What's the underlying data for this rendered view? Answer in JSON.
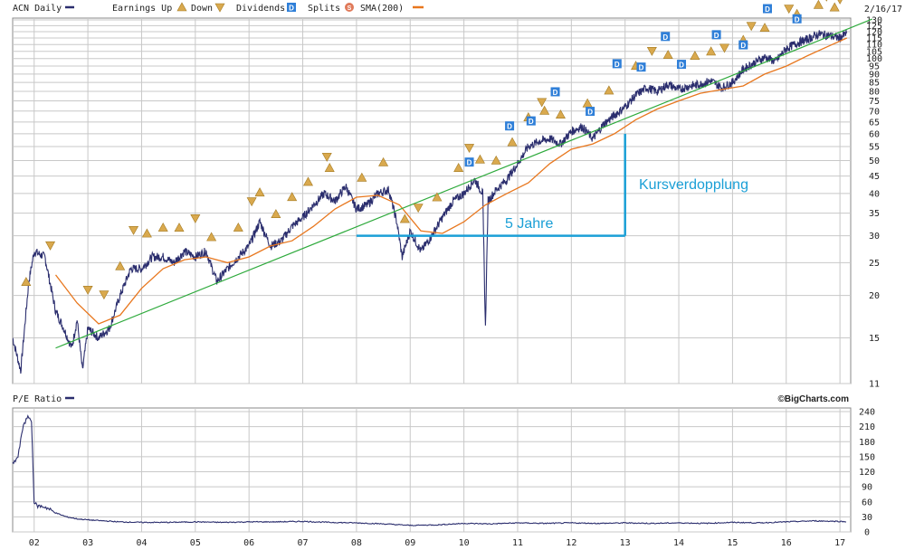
{
  "header": {
    "symbol_label": "ACN Daily",
    "earnings_label": "Earnings Up",
    "down_label": "Down",
    "dividends_label": "Dividends",
    "splits_label": "Splits",
    "sma_label": "SMA(200)",
    "date": "2/16/17"
  },
  "credit": "©BigCharts.com",
  "pe_panel": {
    "label": "P/E Ratio"
  },
  "colors": {
    "price": "#2b2e6e",
    "sma": "#e8771e",
    "trend": "#2eaa3c",
    "annotation": "#1a9fd6",
    "earnings": "#d9a94e",
    "dividend": "#2f7fd8",
    "grid": "#c8c8c8"
  },
  "annotations": {
    "doubling_label": "Kursverdopplung",
    "years_label": "5 Jahre"
  },
  "chart_data": [
    {
      "type": "line",
      "title": "ACN Daily",
      "scale": "log",
      "ylim": [
        11,
        130
      ],
      "y_ticks": [
        11,
        15,
        20,
        25,
        30,
        35,
        40,
        45,
        50,
        55,
        60,
        65,
        70,
        75,
        80,
        85,
        90,
        95,
        100,
        105,
        110,
        115,
        120,
        125,
        130
      ],
      "x_ticks": [
        "02",
        "03",
        "04",
        "05",
        "06",
        "07",
        "08",
        "09",
        "10",
        "11",
        "12",
        "13",
        "14",
        "15",
        "16",
        "17"
      ],
      "legend": [
        "ACN Daily",
        "Earnings Up",
        "Down",
        "Dividends",
        "Splits",
        "SMA(200)"
      ],
      "grid": true,
      "series": [
        {
          "name": "ACN Daily",
          "x": [
            2001.6,
            2001.75,
            2001.9,
            2002.0,
            2002.2,
            2002.4,
            2002.55,
            2002.7,
            2002.8,
            2002.9,
            2003.0,
            2003.2,
            2003.4,
            2003.6,
            2003.8,
            2004.0,
            2004.2,
            2004.4,
            2004.6,
            2004.8,
            2005.0,
            2005.2,
            2005.4,
            2005.6,
            2005.8,
            2006.0,
            2006.2,
            2006.4,
            2006.6,
            2006.8,
            2007.0,
            2007.2,
            2007.4,
            2007.6,
            2007.8,
            2008.0,
            2008.2,
            2008.4,
            2008.6,
            2008.75,
            2008.85,
            2009.0,
            2009.2,
            2009.4,
            2009.6,
            2009.8,
            2010.0,
            2010.2,
            2010.35,
            2010.4,
            2010.45,
            2010.6,
            2010.8,
            2011.0,
            2011.2,
            2011.4,
            2011.6,
            2011.8,
            2012.0,
            2012.2,
            2012.4,
            2012.6,
            2012.8,
            2013.0,
            2013.2,
            2013.4,
            2013.6,
            2013.8,
            2014.0,
            2014.2,
            2014.4,
            2014.6,
            2014.8,
            2015.0,
            2015.2,
            2015.4,
            2015.6,
            2015.8,
            2016.0,
            2016.2,
            2016.4,
            2016.6,
            2016.8,
            2017.0,
            2017.13
          ],
          "values": [
            15,
            12,
            22,
            27,
            26,
            18,
            16,
            14,
            17,
            12,
            16,
            15,
            16,
            20,
            24,
            24,
            26,
            26,
            25,
            27,
            26,
            27,
            22,
            24,
            26,
            28,
            33,
            28,
            29,
            32,
            34,
            37,
            40,
            38,
            42,
            36,
            37,
            40,
            41,
            33,
            26,
            31,
            27,
            30,
            34,
            38,
            40,
            44,
            40,
            16,
            38,
            41,
            44,
            49,
            55,
            57,
            58,
            56,
            61,
            63,
            58,
            64,
            68,
            72,
            78,
            82,
            80,
            84,
            81,
            83,
            84,
            86,
            82,
            85,
            93,
            97,
            101,
            98,
            107,
            111,
            114,
            118,
            117,
            115,
            119
          ]
        },
        {
          "name": "SMA(200)",
          "x": [
            2002.4,
            2002.8,
            2003.2,
            2003.6,
            2004.0,
            2004.4,
            2004.8,
            2005.2,
            2005.6,
            2006.0,
            2006.4,
            2006.8,
            2007.2,
            2007.6,
            2008.0,
            2008.4,
            2008.8,
            2009.2,
            2009.6,
            2010.0,
            2010.4,
            2010.8,
            2011.2,
            2011.6,
            2012.0,
            2012.4,
            2012.8,
            2013.2,
            2013.6,
            2014.0,
            2014.4,
            2014.8,
            2015.2,
            2015.6,
            2016.0,
            2016.4,
            2016.8,
            2017.13
          ],
          "values": [
            23,
            19,
            16.5,
            17.5,
            21,
            24,
            25.5,
            26,
            25,
            26,
            28,
            29,
            32,
            36,
            39,
            39.5,
            37,
            31,
            30.5,
            33,
            37,
            40,
            43,
            49,
            54,
            56,
            60,
            66,
            71,
            75,
            79,
            81,
            83,
            90,
            95,
            102,
            109,
            115
          ]
        },
        {
          "name": "trend line",
          "x": [
            2002.4,
            2017.13
          ],
          "values": [
            14,
            122
          ]
        }
      ],
      "markers": {
        "earnings_up": [
          2001.85,
          2003.6,
          2004.1,
          2004.4,
          2004.7,
          2005.3,
          2005.8,
          2006.2,
          2006.5,
          2006.8,
          2007.1,
          2007.5,
          2008.1,
          2008.5,
          2008.9,
          2009.5,
          2009.9,
          2010.3,
          2010.6,
          2010.9,
          2011.2,
          2011.5,
          2011.8,
          2012.3,
          2012.7,
          2013.2,
          2013.8,
          2014.3,
          2014.6,
          2015.2,
          2015.6,
          2016.2,
          2016.6,
          2016.9
        ],
        "earnings_down": [
          2002.3,
          2003.0,
          2003.3,
          2003.85,
          2005.0,
          2006.05,
          2007.45,
          2009.15,
          2010.1,
          2011.45,
          2013.5,
          2014.85,
          2015.35,
          2016.05,
          2016.75,
          2017.0
        ],
        "dividends": [
          2010.1,
          2010.85,
          2011.25,
          2011.7,
          2012.35,
          2012.85,
          2013.3,
          2013.75,
          2014.05,
          2014.7,
          2015.2,
          2015.65,
          2016.2,
          2016.7
        ],
        "splits": []
      }
    },
    {
      "type": "line",
      "title": "P/E Ratio",
      "ylim": [
        0,
        240
      ],
      "y_ticks": [
        0,
        30,
        60,
        90,
        120,
        150,
        180,
        210,
        240
      ],
      "x_ticks": [
        "02",
        "03",
        "04",
        "05",
        "06",
        "07",
        "08",
        "09",
        "10",
        "11",
        "12",
        "13",
        "14",
        "15",
        "16",
        "17"
      ],
      "series": [
        {
          "name": "P/E Ratio",
          "x": [
            2001.6,
            2001.7,
            2001.8,
            2001.9,
            2001.95,
            2002.0,
            2002.05,
            2002.2,
            2002.4,
            2002.6,
            2002.8,
            2003.0,
            2003.3,
            2003.6,
            2004.0,
            2004.5,
            2005.0,
            2005.5,
            2006.0,
            2006.5,
            2007.0,
            2007.5,
            2008.0,
            2008.5,
            2009.0,
            2009.5,
            2010.0,
            2010.5,
            2011.0,
            2011.5,
            2012.0,
            2012.5,
            2013.0,
            2013.5,
            2014.0,
            2014.5,
            2015.0,
            2015.5,
            2016.0,
            2016.5,
            2017.0,
            2017.13
          ],
          "values": [
            135,
            150,
            215,
            230,
            220,
            60,
            52,
            50,
            38,
            30,
            26,
            24,
            22,
            20,
            19,
            19,
            20,
            19,
            20,
            20,
            21,
            19,
            18,
            16,
            13,
            14,
            17,
            16,
            18,
            17,
            18,
            17,
            18,
            17,
            18,
            17,
            19,
            18,
            20,
            22,
            21,
            20
          ]
        }
      ]
    }
  ]
}
